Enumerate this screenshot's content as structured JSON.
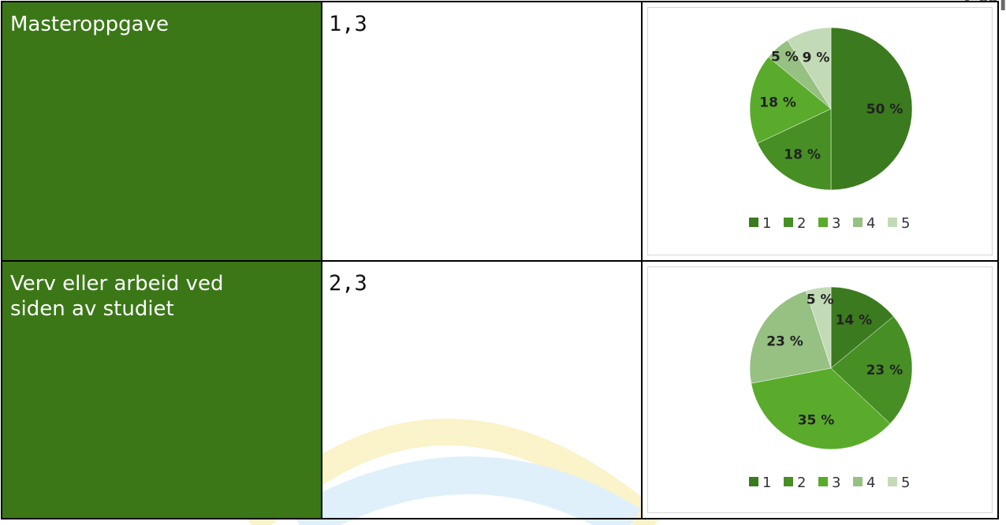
{
  "corner_logo": "EMI",
  "rows": [
    {
      "label": "Masteroppgave",
      "value": "1,3"
    },
    {
      "label": "Verv eller arbeid ved\nsiden av studiet",
      "value": "2,3"
    }
  ],
  "chart_data": [
    {
      "type": "pie",
      "categories": [
        "1",
        "2",
        "3",
        "4",
        "5"
      ],
      "values": [
        50,
        18,
        18,
        5,
        9
      ],
      "labels": [
        "50 %",
        "18 %",
        "18 %",
        "5 %",
        "9 %"
      ],
      "colors": [
        "#3b7a1e",
        "#478f24",
        "#5aab2b",
        "#97c083",
        "#c2dbb6"
      ],
      "legend_position": "bottom"
    },
    {
      "type": "pie",
      "categories": [
        "1",
        "2",
        "3",
        "4",
        "5"
      ],
      "values": [
        14,
        23,
        35,
        23,
        5
      ],
      "labels": [
        "14 %",
        "23 %",
        "35 %",
        "23 %",
        "5 %"
      ],
      "colors": [
        "#3b7a1e",
        "#478f24",
        "#5aab2b",
        "#97c083",
        "#c2dbb6"
      ],
      "legend_position": "bottom"
    }
  ]
}
